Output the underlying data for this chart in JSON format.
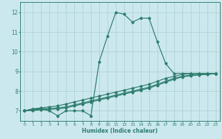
{
  "xlabel": "Humidex (Indice chaleur)",
  "ylabel": "",
  "bg_color": "#cce8ef",
  "grid_color": "#aacccc",
  "line_color": "#2e7d6e",
  "xlim": [
    -0.5,
    23.5
  ],
  "ylim": [
    6.5,
    12.5
  ],
  "xticks": [
    0,
    1,
    2,
    3,
    4,
    5,
    6,
    7,
    8,
    9,
    10,
    11,
    12,
    13,
    14,
    15,
    16,
    17,
    18,
    19,
    20,
    21,
    22,
    23
  ],
  "yticks": [
    7,
    8,
    9,
    10,
    11,
    12
  ],
  "line1_x": [
    0,
    1,
    2,
    3,
    4,
    5,
    6,
    7,
    8,
    9,
    10,
    11,
    12,
    13,
    14,
    15,
    16,
    17,
    18,
    19,
    20,
    21,
    22,
    23
  ],
  "line1_y": [
    7.0,
    7.1,
    7.1,
    7.0,
    6.75,
    7.0,
    7.0,
    7.0,
    6.75,
    9.5,
    10.8,
    12.0,
    11.9,
    11.5,
    11.7,
    11.7,
    10.5,
    9.4,
    8.9,
    8.9,
    8.9,
    8.9,
    8.9,
    8.9
  ],
  "line2_x": [
    0,
    1,
    2,
    3,
    4,
    5,
    6,
    7,
    8,
    9,
    10,
    11,
    12,
    13,
    14,
    15,
    16,
    17,
    18,
    19,
    20,
    21,
    22,
    23
  ],
  "line2_y": [
    7.0,
    7.1,
    7.15,
    7.2,
    7.25,
    7.35,
    7.45,
    7.55,
    7.65,
    7.75,
    7.85,
    7.95,
    8.05,
    8.15,
    8.25,
    8.35,
    8.5,
    8.65,
    8.75,
    8.85,
    8.9,
    8.9,
    8.9,
    8.9
  ],
  "line3_x": [
    0,
    1,
    2,
    3,
    4,
    5,
    6,
    7,
    8,
    9,
    10,
    11,
    12,
    13,
    14,
    15,
    16,
    17,
    18,
    19,
    20,
    21,
    22,
    23
  ],
  "line3_y": [
    7.0,
    7.05,
    7.1,
    7.12,
    7.15,
    7.2,
    7.3,
    7.4,
    7.5,
    7.6,
    7.7,
    7.8,
    7.9,
    8.0,
    8.1,
    8.2,
    8.35,
    8.5,
    8.65,
    8.75,
    8.82,
    8.85,
    8.87,
    8.9
  ],
  "line4_x": [
    0,
    1,
    2,
    3,
    4,
    5,
    6,
    7,
    8,
    9,
    10,
    11,
    12,
    13,
    14,
    15,
    16,
    17,
    18,
    19,
    20,
    21,
    22,
    23
  ],
  "line4_y": [
    7.0,
    7.02,
    7.05,
    7.08,
    7.1,
    7.15,
    7.25,
    7.35,
    7.45,
    7.55,
    7.65,
    7.75,
    7.85,
    7.95,
    8.05,
    8.15,
    8.3,
    8.45,
    8.6,
    8.72,
    8.78,
    8.82,
    8.85,
    8.88
  ]
}
